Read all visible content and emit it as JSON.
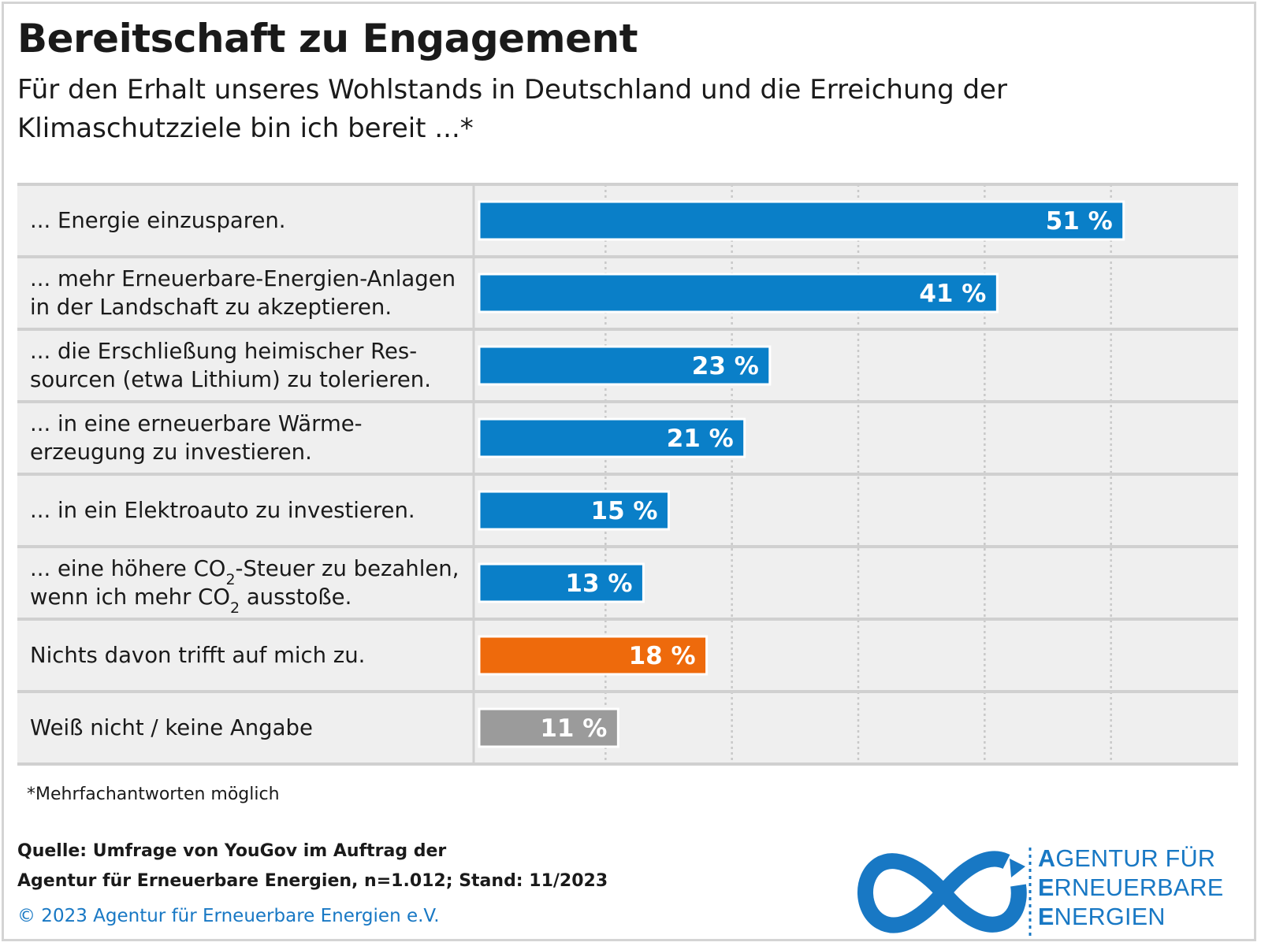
{
  "title": "Bereitschaft zu Engagement",
  "subtitle": "Für den Erhalt unseres Wohlstands in Deutschland und die Erreichung der Klimaschutzziele bin ich bereit ...*",
  "chart_data": {
    "type": "bar",
    "orientation": "horizontal",
    "categories": [
      "... Energie einzusparen.",
      "... mehr Erneuerbare-Energien-Anlagen in der Landschaft zu akzeptieren.",
      "... die Erschließung heimischer Ressourcen (etwa Lithium) zu tolerieren.",
      "... in eine erneuerbare Wärmeerzeugung zu investieren.",
      "... in ein Elektroauto zu investieren.",
      "... eine höhere CO2-Steuer zu bezahlen, wenn ich mehr CO2 ausstoße.",
      "Nichts davon trifft auf mich zu.",
      "Weiß nicht / keine Angabe"
    ],
    "label_lines": [
      [
        [
          "... Energie einzusparen."
        ]
      ],
      [
        [
          "... mehr Erneuerbare-Energien-Anlagen"
        ],
        [
          "in der Landschaft zu akzeptieren."
        ]
      ],
      [
        [
          "... die Erschließung heimischer Res-"
        ],
        [
          "sourcen (etwa Lithium) zu tolerieren."
        ]
      ],
      [
        [
          "... in eine erneuerbare Wärme-"
        ],
        [
          "erzeugung zu investieren."
        ]
      ],
      [
        [
          "... in ein Elektroauto zu investieren."
        ]
      ],
      [
        [
          "... eine höhere CO",
          "2",
          "-Steuer zu bezahlen,"
        ],
        [
          "wenn ich mehr CO",
          "2",
          " ausstoße."
        ]
      ],
      [
        [
          "Nichts davon trifft auf mich zu."
        ]
      ],
      [
        [
          "Weiß nicht / keine Angabe"
        ]
      ]
    ],
    "values": [
      51,
      41,
      23,
      21,
      15,
      13,
      18,
      11
    ],
    "value_labels": [
      "51 %",
      "41 %",
      "23 %",
      "21 %",
      "15 %",
      "13 %",
      "18 %",
      "11 %"
    ],
    "bar_colors": [
      "#0a7fc8",
      "#0a7fc8",
      "#0a7fc8",
      "#0a7fc8",
      "#0a7fc8",
      "#0a7fc8",
      "#ee6a0c",
      "#9b9b9b"
    ],
    "xlim": [
      0,
      60
    ],
    "gridlines": [
      10,
      20,
      30,
      40,
      50
    ],
    "grid": true,
    "legend": "none"
  },
  "footnote": "*Mehrfachantworten möglich",
  "source_line1": "Quelle: Umfrage von YouGov im Auftrag der",
  "source_line2": "Agentur für Erneuerbare Energien, n=1.012; Stand: 11/2023",
  "copyright": "© 2023 Agentur für Erneuerbare Energien e.V.",
  "logo": {
    "lines": [
      {
        "initial": "A",
        "rest": "GENTUR FÜR"
      },
      {
        "initial": "E",
        "rest": "RNEUERBARE"
      },
      {
        "initial": "E",
        "rest": "NERGIEN"
      }
    ],
    "icon": "infinity-logo-icon",
    "color": "#1878c4"
  }
}
